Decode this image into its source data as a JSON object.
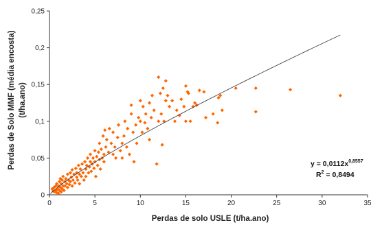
{
  "chart_data": {
    "type": "scatter",
    "xlabel": "Perdas de solo USLE (t/ha.ano)",
    "ylabel_line1": "Perdas de Solo MMF (média encosta)",
    "ylabel_line2": "(t/ha.ano)",
    "xlim": [
      0,
      35
    ],
    "ylim": [
      0,
      0.25
    ],
    "x_ticks": [
      0,
      5,
      10,
      15,
      20,
      25,
      30,
      35
    ],
    "y_ticks": [
      0,
      0.05,
      0.1,
      0.15,
      0.2,
      0.25
    ],
    "x_tick_labels": [
      "0",
      "5",
      "10",
      "15",
      "20",
      "25",
      "30",
      "35"
    ],
    "y_tick_labels": [
      "0",
      "0,05",
      "0,1",
      "0,15",
      "0,2",
      "0,25"
    ],
    "grid": false,
    "marker_color": "#ff6600",
    "trendline_color": "#444444",
    "trendline": {
      "type": "power",
      "coefficient": 0.0112,
      "exponent": 0.8557,
      "x_range": [
        0.1,
        32
      ],
      "equation_base": "y = 0,0112x",
      "equation_exp": "0,8557",
      "r2_base": "R",
      "r2_exp": "2",
      "r2_value": " = 0,8494"
    },
    "points": [
      [
        0.3,
        0.008
      ],
      [
        0.4,
        0.005
      ],
      [
        0.5,
        0.01
      ],
      [
        0.6,
        0.004
      ],
      [
        0.7,
        0.012
      ],
      [
        0.7,
        0.006
      ],
      [
        0.8,
        0.015
      ],
      [
        0.8,
        0.003
      ],
      [
        0.9,
        0.008
      ],
      [
        1.0,
        0.012
      ],
      [
        1.0,
        0.002
      ],
      [
        1.1,
        0.018
      ],
      [
        1.1,
        0.006
      ],
      [
        1.2,
        0.01
      ],
      [
        1.2,
        0.022
      ],
      [
        1.3,
        0.004
      ],
      [
        1.3,
        0.015
      ],
      [
        1.4,
        0.008
      ],
      [
        1.4,
        0.02
      ],
      [
        1.5,
        0.012
      ],
      [
        1.5,
        0.025
      ],
      [
        1.6,
        0.006
      ],
      [
        1.7,
        0.018
      ],
      [
        1.7,
        0.012
      ],
      [
        1.8,
        0.022
      ],
      [
        1.9,
        0.015
      ],
      [
        2.0,
        0.01
      ],
      [
        2.0,
        0.028
      ],
      [
        2.1,
        0.02
      ],
      [
        2.2,
        0.014
      ],
      [
        2.3,
        0.03
      ],
      [
        2.3,
        0.018
      ],
      [
        2.4,
        0.024
      ],
      [
        2.5,
        0.012
      ],
      [
        2.5,
        0.034
      ],
      [
        2.6,
        0.02
      ],
      [
        2.7,
        0.028
      ],
      [
        2.8,
        0.016
      ],
      [
        2.9,
        0.036
      ],
      [
        3.0,
        0.024
      ],
      [
        3.0,
        0.03
      ],
      [
        3.1,
        0.02
      ],
      [
        3.2,
        0.04
      ],
      [
        3.3,
        0.028
      ],
      [
        3.3,
        0.015
      ],
      [
        3.4,
        0.035
      ],
      [
        3.5,
        0.025
      ],
      [
        3.6,
        0.042
      ],
      [
        3.7,
        0.03
      ],
      [
        3.8,
        0.02
      ],
      [
        3.9,
        0.045
      ],
      [
        4.0,
        0.035
      ],
      [
        4.0,
        0.025
      ],
      [
        4.1,
        0.04
      ],
      [
        4.2,
        0.05
      ],
      [
        4.3,
        0.03
      ],
      [
        4.4,
        0.038
      ],
      [
        4.5,
        0.045
      ],
      [
        4.5,
        0.055
      ],
      [
        4.6,
        0.032
      ],
      [
        4.7,
        0.042
      ],
      [
        4.8,
        0.05
      ],
      [
        4.9,
        0.036
      ],
      [
        5.0,
        0.06
      ],
      [
        5.0,
        0.045
      ],
      [
        5.1,
        0.025
      ],
      [
        5.2,
        0.052
      ],
      [
        5.3,
        0.04
      ],
      [
        5.4,
        0.058
      ],
      [
        5.5,
        0.048
      ],
      [
        5.5,
        0.07
      ],
      [
        5.6,
        0.035
      ],
      [
        5.7,
        0.062
      ],
      [
        5.8,
        0.05
      ],
      [
        5.9,
        0.08
      ],
      [
        6.0,
        0.055
      ],
      [
        6.0,
        0.045
      ],
      [
        6.1,
        0.088
      ],
      [
        6.2,
        0.065
      ],
      [
        6.3,
        0.075
      ],
      [
        6.5,
        0.058
      ],
      [
        6.6,
        0.09
      ],
      [
        6.8,
        0.07
      ],
      [
        7.0,
        0.055
      ],
      [
        7.0,
        0.085
      ],
      [
        7.2,
        0.065
      ],
      [
        7.3,
        0.05
      ],
      [
        7.5,
        0.078
      ],
      [
        7.6,
        0.095
      ],
      [
        7.8,
        0.06
      ],
      [
        8.0,
        0.07
      ],
      [
        8.0,
        0.05
      ],
      [
        8.2,
        0.08
      ],
      [
        8.3,
        0.1
      ],
      [
        8.5,
        0.065
      ],
      [
        8.6,
        0.09
      ],
      [
        8.8,
        0.055
      ],
      [
        9.0,
        0.122
      ],
      [
        9.0,
        0.11
      ],
      [
        9.2,
        0.085
      ],
      [
        9.3,
        0.045
      ],
      [
        9.5,
        0.095
      ],
      [
        9.6,
        0.07
      ],
      [
        9.8,
        0.105
      ],
      [
        10.0,
        0.1
      ],
      [
        10.0,
        0.128
      ],
      [
        10.2,
        0.085
      ],
      [
        10.3,
        0.12
      ],
      [
        10.5,
        0.098
      ],
      [
        10.6,
        0.11
      ],
      [
        10.8,
        0.09
      ],
      [
        11.0,
        0.125
      ],
      [
        11.0,
        0.075
      ],
      [
        11.2,
        0.105
      ],
      [
        11.3,
        0.135
      ],
      [
        11.5,
        0.115
      ],
      [
        11.8,
        0.042
      ],
      [
        12.0,
        0.16
      ],
      [
        12.0,
        0.1
      ],
      [
        12.2,
        0.138
      ],
      [
        12.3,
        0.11
      ],
      [
        12.4,
        0.068
      ],
      [
        12.5,
        0.145
      ],
      [
        12.6,
        0.1
      ],
      [
        12.8,
        0.155
      ],
      [
        12.8,
        0.128
      ],
      [
        13.0,
        0.135
      ],
      [
        13.2,
        0.12
      ],
      [
        13.5,
        0.128
      ],
      [
        13.8,
        0.1
      ],
      [
        14.0,
        0.115
      ],
      [
        14.3,
        0.108
      ],
      [
        14.5,
        0.13
      ],
      [
        14.8,
        0.12
      ],
      [
        15.0,
        0.1
      ],
      [
        15.0,
        0.148
      ],
      [
        15.2,
        0.14
      ],
      [
        15.3,
        0.138
      ],
      [
        15.5,
        0.1
      ],
      [
        15.8,
        0.12
      ],
      [
        16.0,
        0.125
      ],
      [
        16.2,
        0.122
      ],
      [
        16.5,
        0.142
      ],
      [
        17.0,
        0.14
      ],
      [
        17.2,
        0.105
      ],
      [
        18.0,
        0.11
      ],
      [
        18.5,
        0.098
      ],
      [
        18.6,
        0.132
      ],
      [
        18.8,
        0.135
      ],
      [
        19.0,
        0.115
      ],
      [
        20.5,
        0.145
      ],
      [
        22.7,
        0.145
      ],
      [
        22.7,
        0.113
      ],
      [
        26.5,
        0.143
      ],
      [
        32.0,
        0.135
      ]
    ]
  }
}
